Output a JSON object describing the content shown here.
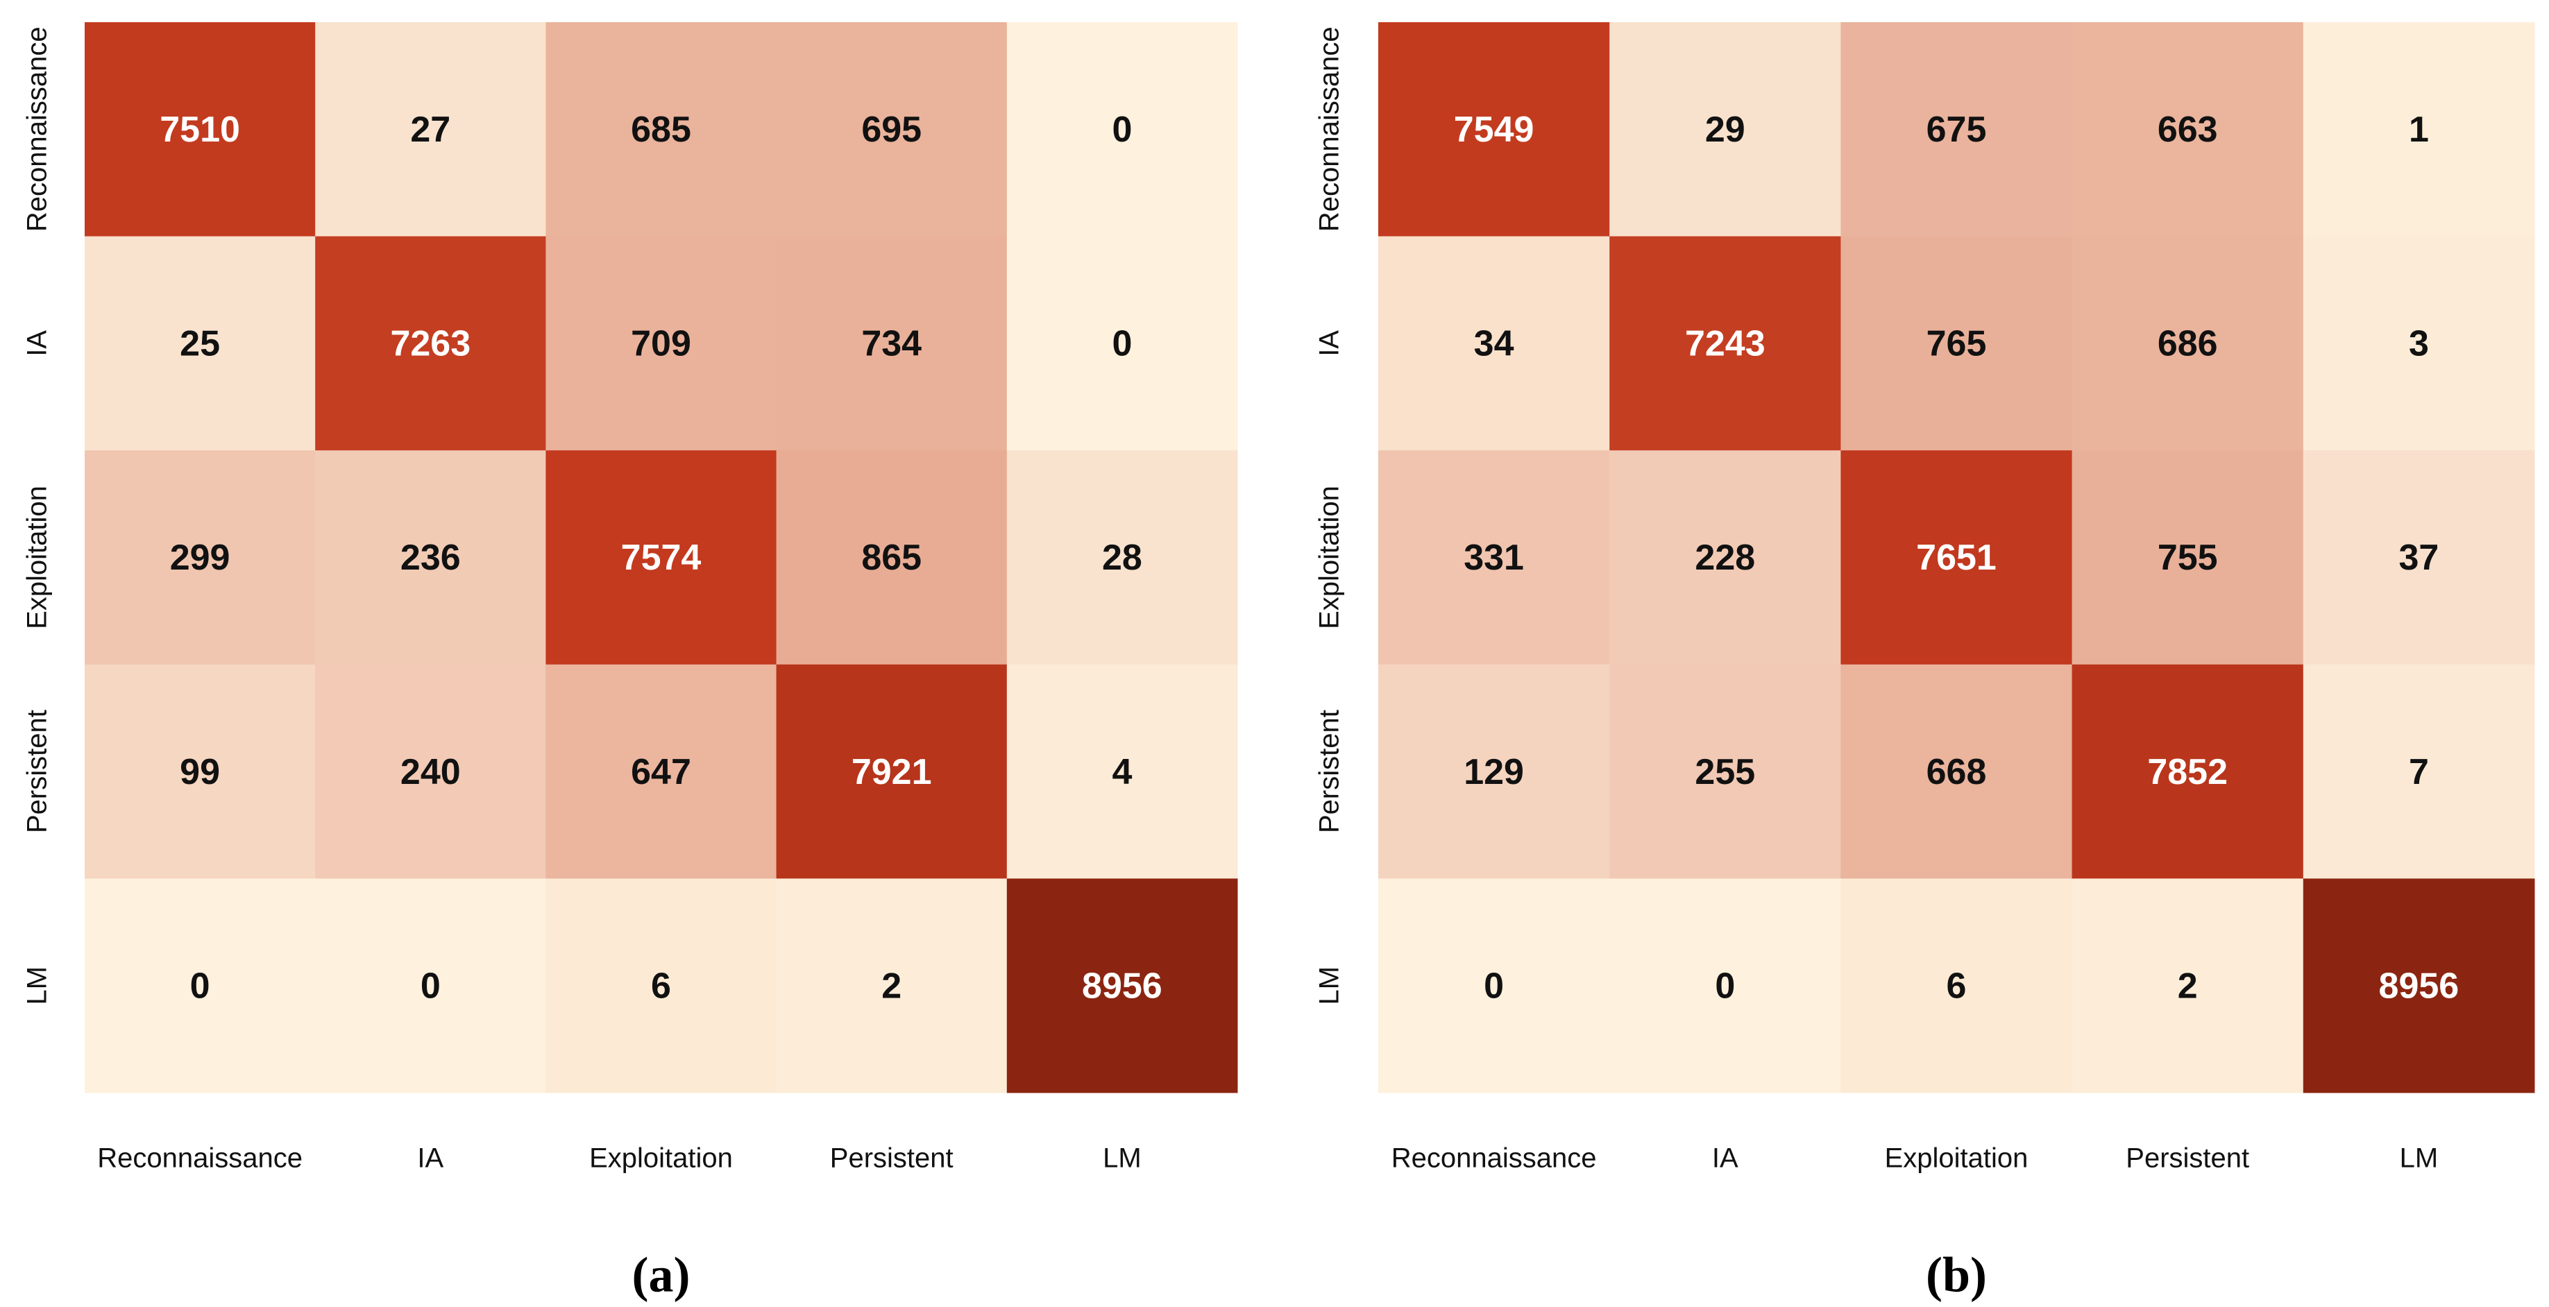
{
  "chart_data": [
    {
      "type": "heatmap",
      "title": "",
      "caption": "(a)",
      "xlabel": "",
      "ylabel": "",
      "row_labels": [
        "Reconnaissance",
        "IA",
        "Exploitation",
        "Persistent",
        "LM"
      ],
      "col_labels": [
        "Reconnaissance",
        "IA",
        "Exploitation",
        "Persistent",
        "LM"
      ],
      "values": [
        [
          7510,
          27,
          685,
          695,
          0
        ],
        [
          25,
          7263,
          709,
          734,
          0
        ],
        [
          299,
          236,
          7574,
          865,
          28
        ],
        [
          99,
          240,
          647,
          7921,
          4
        ],
        [
          0,
          0,
          6,
          2,
          8956
        ]
      ],
      "colormap": "orange-red sequential",
      "colors": {
        "low": "#fef1dd",
        "mid": "#c33a1e",
        "high": "#8b2511",
        "text_dark": "#111111",
        "text_light": "#ffffff"
      }
    },
    {
      "type": "heatmap",
      "title": "",
      "caption": "(b)",
      "xlabel": "",
      "ylabel": "",
      "row_labels": [
        "Reconnaissance",
        "IA",
        "Exploitation",
        "Persistent",
        "LM"
      ],
      "col_labels": [
        "Reconnaissance",
        "IA",
        "Exploitation",
        "Persistent",
        "LM"
      ],
      "values": [
        [
          7549,
          29,
          675,
          663,
          1
        ],
        [
          34,
          7243,
          765,
          686,
          3
        ],
        [
          331,
          228,
          7651,
          755,
          37
        ],
        [
          129,
          255,
          668,
          7852,
          7
        ],
        [
          0,
          0,
          6,
          2,
          8956
        ]
      ],
      "colormap": "orange-red sequential",
      "colors": {
        "low": "#fef1dd",
        "mid": "#c33a1e",
        "high": "#8b2511",
        "text_dark": "#111111",
        "text_light": "#ffffff"
      }
    }
  ]
}
